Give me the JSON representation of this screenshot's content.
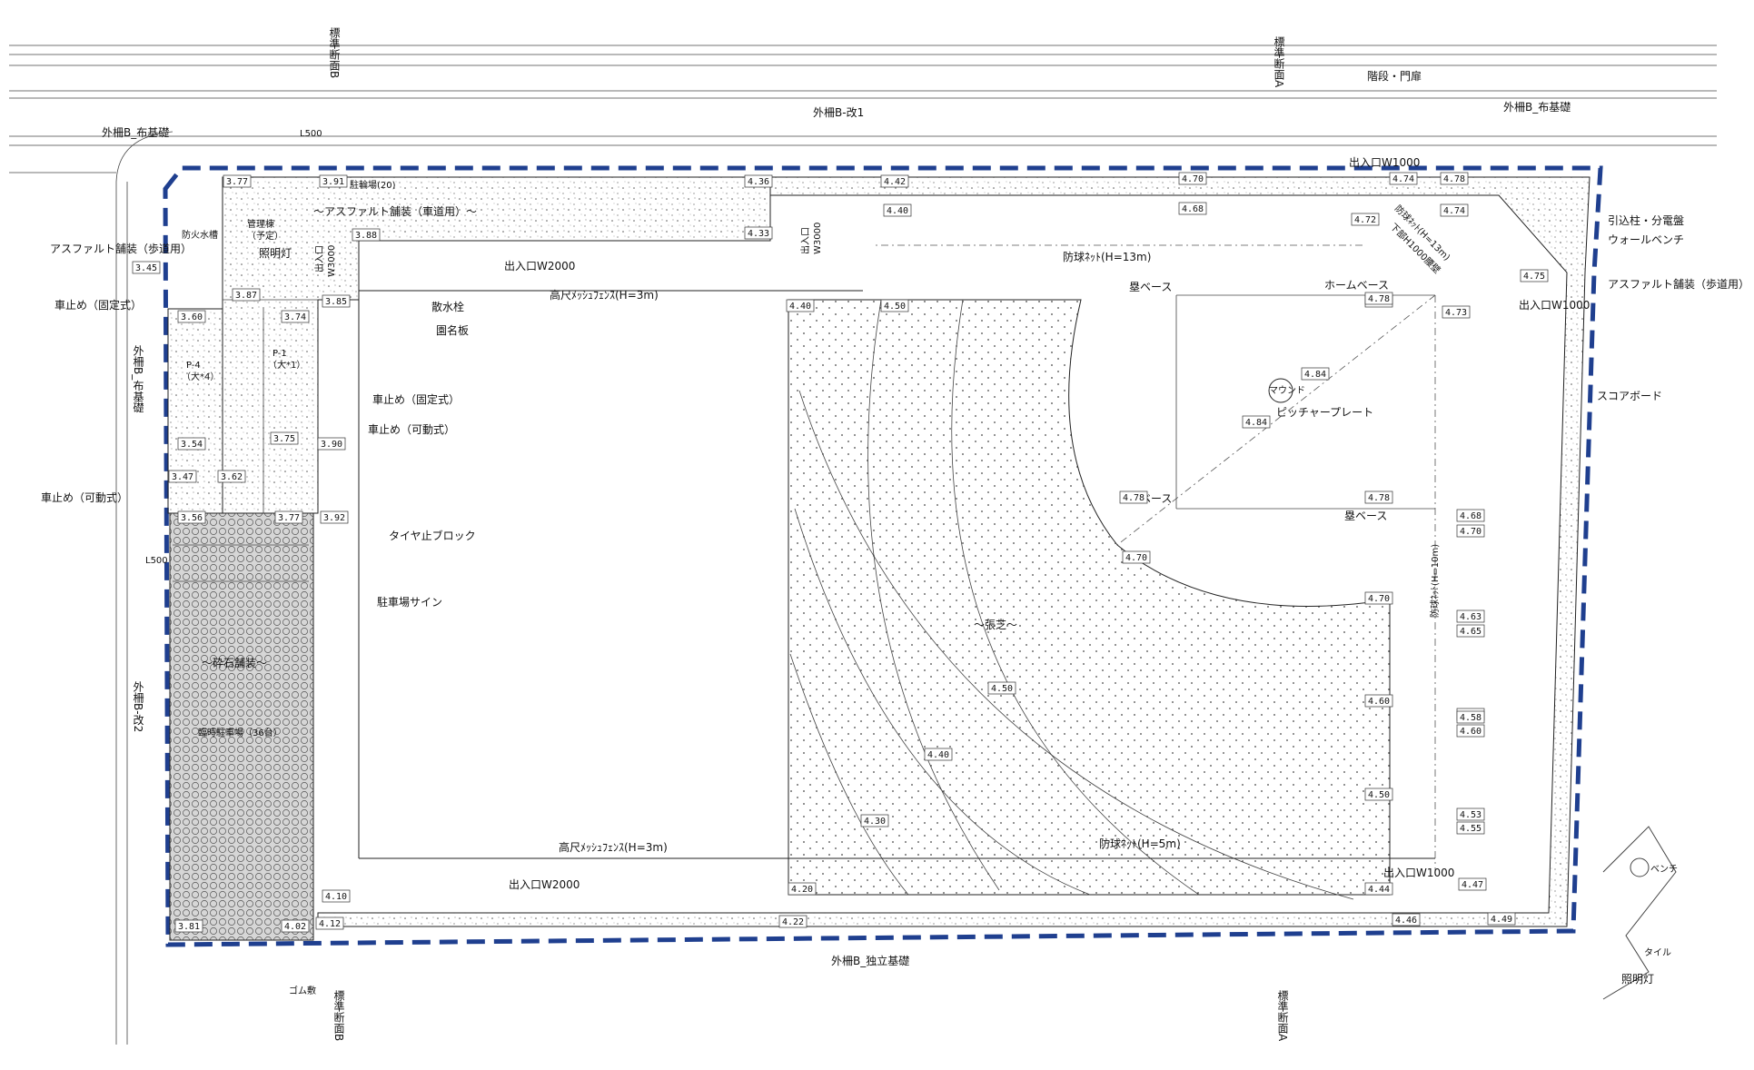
{
  "colors": {
    "boundary": "#1f3f8f",
    "line": "#222222"
  },
  "sections": {
    "b_top": "標準断面B",
    "a_top": "標準断面A",
    "b_bottom": "標準断面B",
    "a_bottom": "標準断面A"
  },
  "labels": {
    "kaidan": "階段・門扉",
    "sotosaku_b_kai1": "外柵B-改1",
    "sotosaku_b_nuno_r": "外柵B_布基礎",
    "sotosaku_b_nuno_tl": "外柵B_布基礎",
    "sotosaku_b_nuno_left": "外柵B_布基礎",
    "sotosaku_b_kai2": "外柵B-改2",
    "sotosaku_b_dokuritsu": "外柵B_独立基礎",
    "l500_top": "L500",
    "l500_left": "L500",
    "asphalt_car": "～アスファルト舗装（車道用）～",
    "asphalt_walk_left": "アスファルト舗装（歩道用）",
    "asphalt_walk_right": "アスファルト舗装（歩道用）",
    "kanri": "管理棟",
    "yotei": "（予定）",
    "bouka": "防火水槽",
    "shomei_left": "照明灯",
    "shomei_bottom": "照明灯",
    "kurumadome_fixed_left": "車止め（固定式）",
    "kurumadome_fixed_mid": "車止め（固定式）",
    "kurumadome_move_mid": "車止め（可動式）",
    "kurumadome_move_left": "車止め（可動式）",
    "churin": "駐輪場(20)",
    "entrance_w3000_a": "出入口",
    "entrance_w3000_a2": "W3000",
    "entrance_w2000_top": "出入口W2000",
    "entrance_w3000_b": "出入口",
    "entrance_w3000_b2": "W3000",
    "entrance_w1000_top": "出入口W1000",
    "entrance_w1000_right": "出入口W1000",
    "entrance_w1000_bottom": "出入口W1000",
    "entrance_w2000_bottom": "出入口W2000",
    "sansuisen": "散水栓",
    "enmeiban": "園名板",
    "fence_top": "高尺ﾒｯｼｭﾌｪﾝｽ(H=3m)",
    "fence_bottom": "高尺ﾒｯｼｭﾌｪﾝｽ(H=3m)",
    "net13": "防球ﾈｯﾄ(H=13m)",
    "net13_diag": "防球ﾈｯﾄ(H=13m)",
    "net13_diag2": "下部H1000腰壁",
    "net10": "防球ﾈｯﾄ(H=10m)",
    "net5": "防球ﾈｯﾄ(H=5m)",
    "hikikomi": "引込柱・分電盤",
    "wall_bench": "ウォールベンチ",
    "score": "スコアボード",
    "rui_base_1": "塁ベース",
    "rui_base_2": "塁ベース",
    "rui_base_3": "塁ベース",
    "home_base": "ホームベース",
    "mound": "マウンド",
    "pitcher": "ピッチャープレート",
    "shibafu": "～張芝～",
    "saiseki": "～砕石舗装～",
    "rinji": "臨時駐車場（36台）",
    "tire": "タイヤ止ブロック",
    "sign": "駐車場サイン",
    "p4": "P-4",
    "p4b": "（大*4）",
    "p1": "P-1",
    "p1b": "（大*1）",
    "bench": "ベンチ",
    "tile": "タイル",
    "gomu": "ゴム敷"
  },
  "elevations": [
    "3.77",
    "3.91",
    "4.36",
    "4.42",
    "4.70",
    "4.74",
    "4.78",
    "4.40",
    "4.68",
    "4.72",
    "4.74",
    "4.33",
    "3.88",
    "3.45",
    "3.87",
    "3.85",
    "3.74",
    "3.60",
    "4.40",
    "4.50",
    "4.78",
    "4.78",
    "4.75",
    "4.73",
    "4.84",
    "4.84",
    "4.78",
    "4.78",
    "3.54",
    "3.75",
    "3.90",
    "3.47",
    "3.62",
    "3.56",
    "3.77",
    "3.92",
    "4.70",
    "4.70",
    "4.68",
    "4.70",
    "4.60",
    "4.63",
    "4.65",
    "4.60",
    "4.50",
    "4.58",
    "4.60",
    "4.40",
    "4.50",
    "4.53",
    "4.55",
    "4.30",
    "4.20",
    "4.10",
    "4.44",
    "4.47",
    "3.81",
    "4.02",
    "4.12",
    "4.22",
    "4.46",
    "4.49"
  ]
}
